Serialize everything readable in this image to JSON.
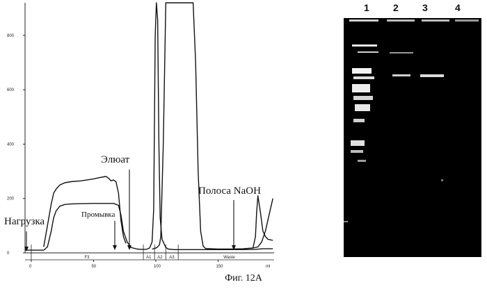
{
  "caption": "Фиг. 12А",
  "chart_data": {
    "type": "line",
    "title": "",
    "xlabel": "ml",
    "ylabel": "",
    "xlim": [
      -5,
      195
    ],
    "ylim": [
      0,
      920
    ],
    "x_ticks": [
      0,
      50,
      100,
      150
    ],
    "y_ticks": [
      0,
      200,
      400,
      600,
      800
    ],
    "x_tick_labels": [
      "0",
      "50",
      "100",
      "150"
    ],
    "y_tick_labels": [
      "0",
      "200",
      "400",
      "600",
      "800"
    ],
    "grid": false,
    "series": [
      {
        "name": "",
        "x": [
          -5,
          0,
          10,
          13,
          16,
          18,
          20,
          23,
          27,
          32,
          40,
          50,
          60,
          66,
          70,
          72,
          74,
          77,
          80,
          85,
          88,
          90,
          92,
          93,
          95,
          97,
          98.3,
          99.5,
          100.5,
          101.5,
          102.5,
          103.5,
          105,
          108,
          110,
          115,
          120,
          140,
          160,
          170,
          180,
          186,
          189,
          194
        ],
        "y": [
          10,
          10,
          10,
          22,
          80,
          130,
          155,
          172,
          178,
          180,
          181,
          182,
          182,
          182,
          175,
          140,
          80,
          40,
          20,
          14,
          13,
          13,
          13,
          14,
          18,
          40,
          160,
          800,
          920,
          860,
          400,
          130,
          50,
          20,
          14,
          12,
          12,
          12,
          12,
          12,
          13,
          15,
          15,
          15
        ]
      },
      {
        "name": "",
        "x": [
          10,
          13,
          16,
          18,
          20,
          23,
          27,
          32,
          40,
          50,
          55,
          60,
          62,
          64,
          66,
          68,
          70,
          72,
          74,
          76
        ],
        "y": [
          22,
          100,
          180,
          220,
          235,
          250,
          258,
          262,
          265,
          272,
          277,
          281,
          275,
          265,
          268,
          262,
          220,
          120,
          60,
          35
        ]
      },
      {
        "name": "",
        "x": [
          97,
          99,
          101,
          103,
          104,
          106,
          108,
          110,
          112,
          114,
          116,
          120,
          125,
          130,
          132,
          134,
          136,
          138,
          140,
          150,
          160,
          170,
          178,
          180,
          181,
          182,
          184,
          186,
          188,
          190,
          194
        ],
        "y": [
          14,
          16,
          20,
          30,
          60,
          400,
          920,
          920,
          920,
          920,
          920,
          920,
          920,
          920,
          700,
          300,
          80,
          25,
          16,
          14,
          14,
          15,
          18,
          60,
          150,
          210,
          150,
          80,
          60,
          50,
          46
        ]
      },
      {
        "name": "",
        "x": [
          178,
          182,
          185,
          188,
          191,
          194
        ],
        "y": [
          18,
          22,
          40,
          80,
          140,
          200
        ]
      }
    ],
    "fractions": [
      {
        "label": "F3",
        "from": 0,
        "to": 90
      },
      {
        "label": "A1",
        "from": 90,
        "to": 99
      },
      {
        "label": "A2",
        "from": 99,
        "to": 108
      },
      {
        "label": "A3",
        "from": 108,
        "to": 118
      },
      {
        "label": "Waste",
        "from": 118,
        "to": 195
      }
    ],
    "annotations": [
      {
        "label": "Нагрузка",
        "x": 0
      },
      {
        "label": "Промывка",
        "x": 77
      },
      {
        "label": "Элюат",
        "x": 90
      },
      {
        "label": "Полоса NaOH",
        "x": 176
      }
    ]
  },
  "gel": {
    "lane_labels": [
      "1",
      "2",
      "3",
      "4"
    ],
    "background": "#000000"
  }
}
